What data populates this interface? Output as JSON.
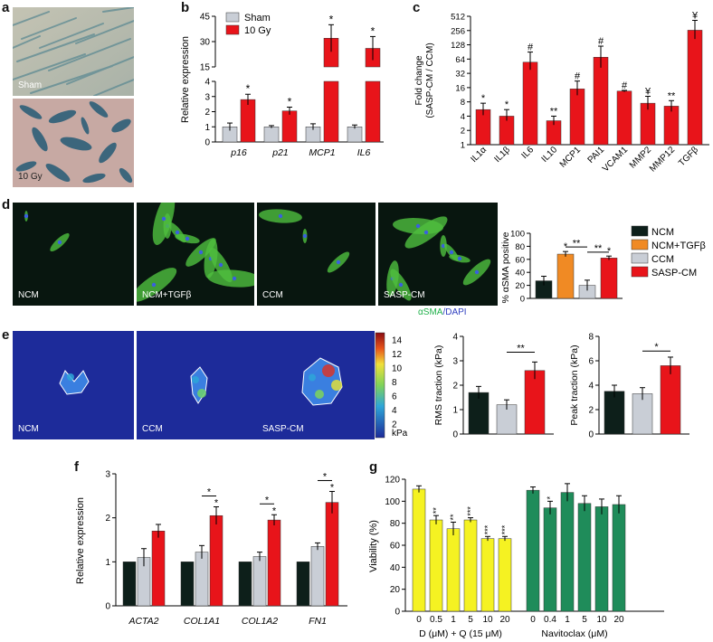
{
  "figure": {
    "panels": {
      "a": {
        "letter": "a",
        "images": [
          {
            "label": "Sham"
          },
          {
            "label": "10 Gy"
          }
        ]
      },
      "b": {
        "letter": "b"
      },
      "c": {
        "letter": "c"
      },
      "d": {
        "letter": "d",
        "images": [
          {
            "label": "NCM"
          },
          {
            "label": "NCM+TGFβ"
          },
          {
            "label": "CCM"
          },
          {
            "label": "SASP-CM"
          }
        ],
        "stain_label_green": "αSMA",
        "stain_label_sep": "/",
        "stain_label_blue": "DAPI"
      },
      "e": {
        "letter": "e",
        "images": [
          {
            "label": "NCM"
          },
          {
            "label": "CCM"
          },
          {
            "label": "SASP-CM"
          }
        ],
        "colorbar": {
          "ticks": [
            "14",
            "12",
            "10",
            "8",
            "6",
            "4",
            "2"
          ],
          "unit": "kPa"
        }
      },
      "f": {
        "letter": "f"
      },
      "g": {
        "letter": "g"
      }
    }
  },
  "colors": {
    "red": "#e8141a",
    "grey": "#c9ced6",
    "black": "#0d1f1a",
    "orange": "#f08a24",
    "yellow": "#f5f222",
    "green": "#1f8c5a",
    "micro_bg": "#08160f",
    "traction_bg": "#1d2b9a"
  },
  "chart_data": [
    {
      "id": "b",
      "type": "bar",
      "ylabel": "Relative expression",
      "categories": [
        "p16",
        "p21",
        "MCP1",
        "IL6"
      ],
      "legend": [
        "Sham",
        "10 Gy"
      ],
      "axis_break": {
        "lower": [
          0,
          4
        ],
        "upper": [
          15,
          45
        ]
      },
      "yticks_lower": [
        "0",
        "1",
        "2",
        "3",
        "4"
      ],
      "yticks_upper": [
        "15",
        "30",
        "45"
      ],
      "series": [
        {
          "name": "Sham",
          "values": [
            1.0,
            1.0,
            1.0,
            1.0
          ],
          "errors": [
            0.25,
            0.08,
            0.2,
            0.12
          ]
        },
        {
          "name": "10 Gy",
          "values": [
            2.8,
            2.05,
            32,
            26
          ],
          "errors": [
            0.35,
            0.25,
            8,
            7
          ]
        }
      ],
      "annotations": [
        "*",
        "*",
        "*",
        "*"
      ]
    },
    {
      "id": "c",
      "type": "bar",
      "scale": "log2",
      "ylabel_line1": "Fold change",
      "ylabel_line2": "(SASP-CM / CCM)",
      "yticks": [
        "1",
        "2",
        "4",
        "8",
        "16",
        "32",
        "64",
        "128",
        "256",
        "512"
      ],
      "categories": [
        "IL1α",
        "IL1β",
        "IL6",
        "IL10",
        "MCP1",
        "PAI1",
        "VCAM1",
        "MMP2",
        "MMP12",
        "TGFβ"
      ],
      "values": [
        5.5,
        4.0,
        55,
        3.2,
        15,
        70,
        13.5,
        7.5,
        6.5,
        260
      ],
      "errors_upper": [
        7.5,
        5.5,
        90,
        4.0,
        22,
        120,
        14,
        10.5,
        8.5,
        420
      ],
      "errors_lower": [
        4.2,
        3.2,
        38,
        2.6,
        11,
        42,
        13,
        5.5,
        5.0,
        170
      ],
      "annotations": [
        "*",
        "*",
        "#",
        "**",
        "#",
        "#",
        "#",
        "¥",
        "**",
        "¥"
      ]
    },
    {
      "id": "d",
      "type": "bar",
      "ylabel": "% αSMA positive",
      "ylim": [
        0,
        100
      ],
      "yticks": [
        "0",
        "20",
        "40",
        "60",
        "80",
        "100"
      ],
      "categories": [
        "NCM",
        "NCM+TGFβ",
        "CCM",
        "SASP-CM"
      ],
      "values": [
        27,
        68,
        20,
        62
      ],
      "errors": [
        7,
        4,
        8,
        3
      ],
      "legend": [
        "NCM",
        "NCM+TGFβ",
        "CCM",
        "SASP-CM"
      ],
      "annotations": [
        "*",
        "**",
        "**",
        "*"
      ]
    },
    {
      "id": "e1",
      "type": "bar",
      "ylabel": "RMS traction (kPa)",
      "ylim": [
        0,
        4
      ],
      "yticks": [
        "0",
        "1",
        "2",
        "3",
        "4"
      ],
      "categories": [
        "NCM",
        "CCM",
        "SASP-CM"
      ],
      "values": [
        1.7,
        1.2,
        2.6
      ],
      "errors": [
        0.25,
        0.2,
        0.35
      ],
      "annotations": [
        "**"
      ]
    },
    {
      "id": "e2",
      "type": "bar",
      "ylabel": "Peak traction (kPa)",
      "ylim": [
        0,
        8
      ],
      "yticks": [
        "0",
        "2",
        "4",
        "6",
        "8"
      ],
      "categories": [
        "NCM",
        "CCM",
        "SASP-CM"
      ],
      "values": [
        3.5,
        3.3,
        5.6
      ],
      "errors": [
        0.5,
        0.5,
        0.7
      ],
      "annotations": [
        "*"
      ]
    },
    {
      "id": "f",
      "type": "bar",
      "ylabel": "Relative expression",
      "ylim": [
        0,
        3
      ],
      "yticks": [
        "0",
        "1",
        "2",
        "3"
      ],
      "categories": [
        "ACTA2",
        "COL1A1",
        "COL1A2",
        "FN1"
      ],
      "series": [
        {
          "values": [
            1.0,
            1.0,
            1.0,
            1.0
          ],
          "errors": [
            0,
            0,
            0,
            0
          ]
        },
        {
          "values": [
            1.1,
            1.22,
            1.12,
            1.35
          ],
          "errors": [
            0.2,
            0.15,
            0.1,
            0.08
          ]
        },
        {
          "values": [
            1.7,
            2.05,
            1.95,
            2.35
          ],
          "errors": [
            0.15,
            0.2,
            0.12,
            0.25
          ]
        }
      ],
      "annotations": [
        "*",
        "*",
        "*",
        "*",
        "*",
        "*"
      ]
    },
    {
      "id": "g",
      "type": "bar",
      "ylabel": "Viability (%)",
      "ylim": [
        0,
        120
      ],
      "yticks": [
        "0",
        "20",
        "40",
        "60",
        "80",
        "100",
        "120"
      ],
      "groups": [
        {
          "xlabel": "D (μM) + Q (15 μM)",
          "categories": [
            "0",
            "0.5",
            "1",
            "5",
            "10",
            "20"
          ],
          "values": [
            111,
            83,
            75,
            83,
            66,
            66
          ],
          "errors": [
            3,
            4,
            6,
            2,
            2,
            2
          ],
          "annotations": [
            "",
            "**",
            "**",
            "***",
            "***",
            "***"
          ]
        },
        {
          "xlabel": "Navitoclax (μM)",
          "categories": [
            "0",
            "0.4",
            "1",
            "5",
            "10",
            "20"
          ],
          "values": [
            110,
            94,
            108,
            98,
            95,
            97
          ],
          "errors": [
            3,
            6,
            8,
            7,
            7,
            8
          ],
          "annotations": [
            "",
            "*",
            "",
            "",
            "",
            ""
          ]
        }
      ]
    }
  ]
}
